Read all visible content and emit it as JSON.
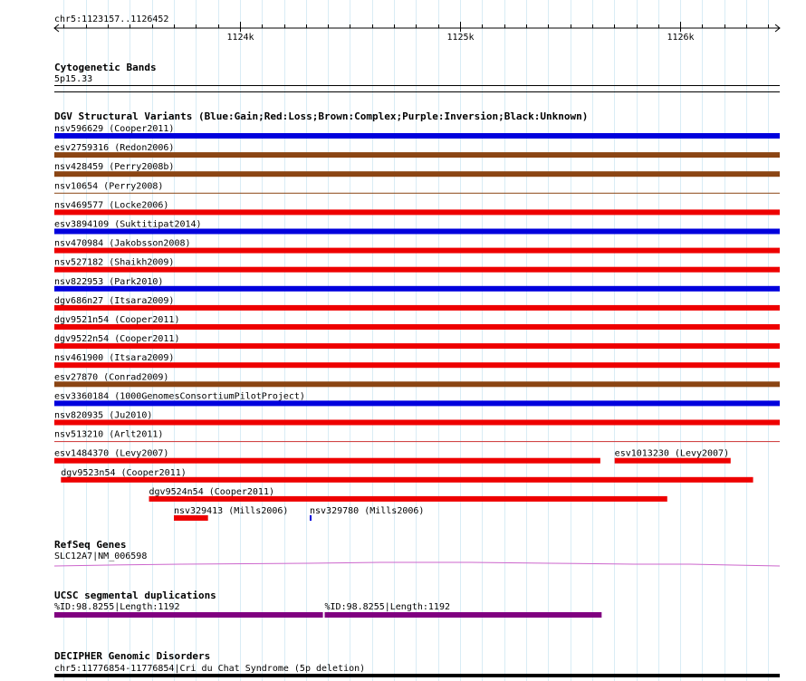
{
  "ruler": {
    "range_label": "chr5:1123157..1126452",
    "start": 1123157,
    "end": 1126452,
    "ticks": [
      {
        "pos": 1124000,
        "label": "1124k"
      },
      {
        "pos": 1125000,
        "label": "1125k"
      },
      {
        "pos": 1126000,
        "label": "1126k"
      }
    ]
  },
  "tracks": {
    "cytoband": {
      "title": "Cytogenetic Bands",
      "band": "5p15.33"
    },
    "dgv": {
      "title": "DGV Structural Variants (Blue:Gain;Red:Loss;Brown:Complex;Purple:Inversion;Black:Unknown)",
      "colors": {
        "gain": "#0000dd",
        "loss": "#ee0000",
        "complex": "#8b4513",
        "thin": "#cc3333"
      },
      "variants": [
        {
          "label": "nsv596629 (Cooper2011)",
          "type": "gain",
          "start": 1123157,
          "end": 1126452,
          "row": 0
        },
        {
          "label": "esv2759316 (Redon2006)",
          "type": "complex",
          "start": 1123157,
          "end": 1126452,
          "row": 1
        },
        {
          "label": "nsv428459 (Perry2008b)",
          "type": "complex",
          "start": 1123157,
          "end": 1126452,
          "row": 2
        },
        {
          "label": "nsv10654 (Perry2008)",
          "type": "complex_thin",
          "start": 1123157,
          "end": 1126452,
          "row": 3
        },
        {
          "label": "nsv469577 (Locke2006)",
          "type": "loss",
          "start": 1123157,
          "end": 1126452,
          "row": 4
        },
        {
          "label": "esv3894109 (Suktitipat2014)",
          "type": "gain",
          "start": 1123157,
          "end": 1126452,
          "row": 5
        },
        {
          "label": "nsv470984 (Jakobsson2008)",
          "type": "loss",
          "start": 1123157,
          "end": 1126452,
          "row": 6
        },
        {
          "label": "nsv527182 (Shaikh2009)",
          "type": "loss",
          "start": 1123157,
          "end": 1126452,
          "row": 7
        },
        {
          "label": "nsv822953 (Park2010)",
          "type": "gain",
          "start": 1123157,
          "end": 1126452,
          "row": 8
        },
        {
          "label": "dgv686n27 (Itsara2009)",
          "type": "loss",
          "start": 1123157,
          "end": 1126452,
          "row": 9
        },
        {
          "label": "dgv9521n54 (Cooper2011)",
          "type": "loss",
          "start": 1123157,
          "end": 1126452,
          "row": 10
        },
        {
          "label": "dgv9522n54 (Cooper2011)",
          "type": "loss",
          "start": 1123157,
          "end": 1126452,
          "row": 11
        },
        {
          "label": "nsv461900 (Itsara2009)",
          "type": "loss",
          "start": 1123157,
          "end": 1126452,
          "row": 12
        },
        {
          "label": "esv27870 (Conrad2009)",
          "type": "complex",
          "start": 1123157,
          "end": 1126452,
          "row": 13
        },
        {
          "label": "esv3360184 (1000GenomesConsortiumPilotProject)",
          "type": "gain",
          "start": 1123157,
          "end": 1126452,
          "row": 14
        },
        {
          "label": "nsv820935 (Ju2010)",
          "type": "loss",
          "start": 1123157,
          "end": 1126452,
          "row": 15
        },
        {
          "label": "nsv513210 (Arlt2011)",
          "type": "loss_thin",
          "start": 1123157,
          "end": 1126452,
          "row": 16
        },
        {
          "label": "esv1484370 (Levy2007)",
          "type": "loss",
          "start": 1123157,
          "end": 1125637,
          "row": 17
        },
        {
          "label": "esv1013230 (Levy2007)",
          "type": "loss",
          "start": 1125702,
          "end": 1126229,
          "row": 17
        },
        {
          "label": "dgv9523n54 (Cooper2011)",
          "type": "loss",
          "start": 1123187,
          "end": 1126331,
          "row": 18
        },
        {
          "label": "dgv9524n54 (Cooper2011)",
          "type": "loss",
          "start": 1123587,
          "end": 1125941,
          "row": 19
        },
        {
          "label": "nsv329413 (Mills2006)",
          "type": "loss",
          "start": 1123700,
          "end": 1123855,
          "row": 20
        },
        {
          "label": "nsv329780 (Mills2006)",
          "type": "gain",
          "start": 1124317,
          "end": 1124325,
          "row": 20
        }
      ]
    },
    "refseq": {
      "title": "RefSeq Genes",
      "gene": "SLC12A7|NM_006598",
      "color": "#cc66cc"
    },
    "segdup": {
      "title": "UCSC segmental duplications",
      "color": "#800080",
      "features": [
        {
          "label": "%ID:98.8255|Length:1192",
          "start": 1123157,
          "end": 1124377
        },
        {
          "label": "%ID:98.8255|Length:1192",
          "start": 1124385,
          "end": 1125643
        }
      ]
    },
    "decipher": {
      "title": "DECIPHER Genomic Disorders",
      "label": "chr5:11776854-11776854|Cri du Chat Syndrome (5p deletion)"
    }
  }
}
